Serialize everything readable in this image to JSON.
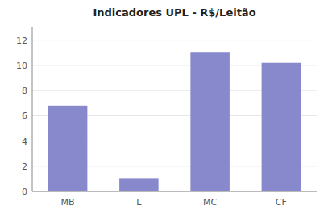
{
  "chart_data": {
    "type": "bar",
    "title": "Indicadores UPL - R$/Leitão",
    "categories": [
      "MB",
      "L",
      "MC",
      "CF"
    ],
    "values": [
      6.8,
      1.0,
      11.0,
      10.2
    ],
    "color": "#8888CC",
    "ylim": [
      0,
      13
    ],
    "yticks": [
      0,
      2,
      4,
      6,
      8,
      10,
      12
    ],
    "grid": true
  }
}
